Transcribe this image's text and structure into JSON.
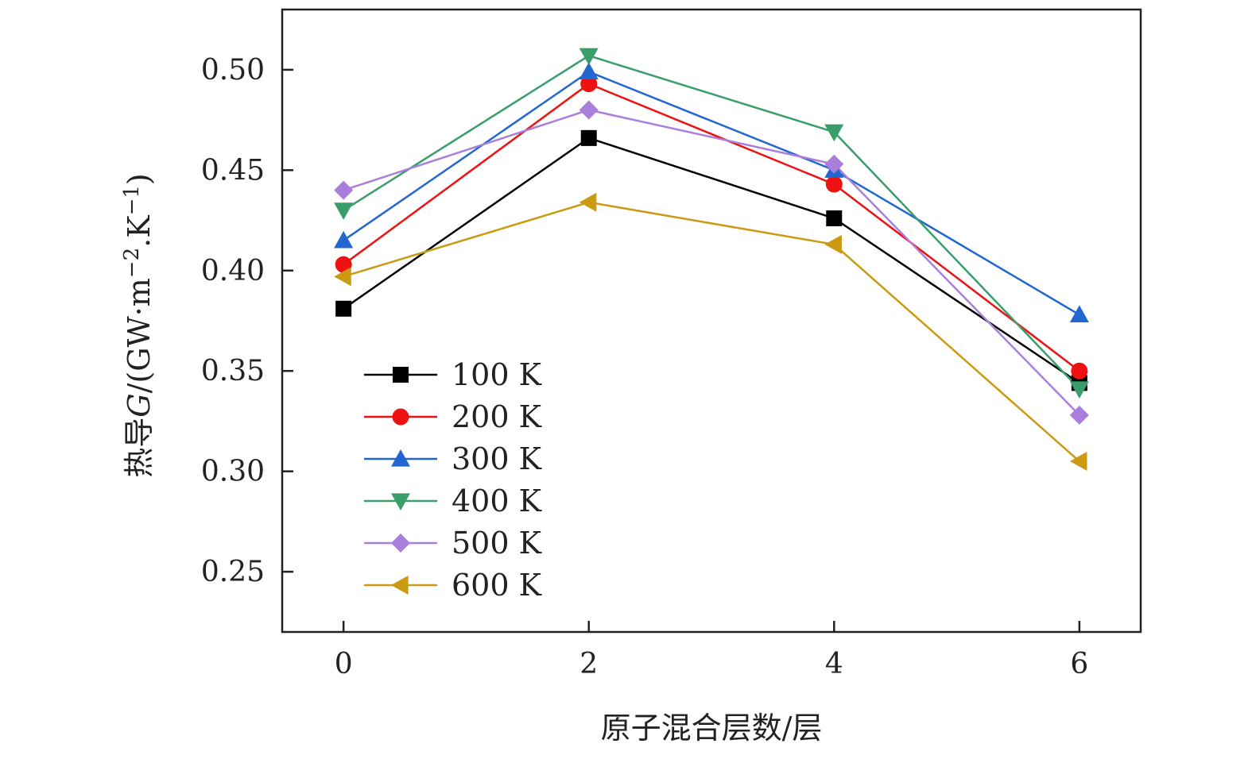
{
  "chart_data": {
    "type": "line",
    "title": "",
    "xlabel": "原子混合层数/层",
    "ylabel_prefix": "热导",
    "ylabel_var": "G",
    "ylabel_units": "/(GW·m",
    "ylabel_exp1": "−2",
    "ylabel_mid": ".K",
    "ylabel_exp2": "−1",
    "ylabel_close": ")",
    "x": [
      0,
      2,
      4,
      6
    ],
    "xlim": [
      -0.5,
      6.5
    ],
    "ylim": [
      0.22,
      0.53
    ],
    "xticks": [
      "0",
      "2",
      "4",
      "6"
    ],
    "yticks": [
      "0.25",
      "0.30",
      "0.35",
      "0.40",
      "0.45",
      "0.50"
    ],
    "legend_position": "lower-left",
    "series": [
      {
        "name": "100 K",
        "color": "#000000",
        "marker": "square",
        "values": [
          0.381,
          0.466,
          0.426,
          0.344
        ]
      },
      {
        "name": "200 K",
        "color": "#ee1111",
        "marker": "circle",
        "values": [
          0.403,
          0.493,
          0.443,
          0.35
        ]
      },
      {
        "name": "300 K",
        "color": "#2166d1",
        "marker": "triangle-up",
        "values": [
          0.415,
          0.499,
          0.45,
          0.378
        ]
      },
      {
        "name": "400 K",
        "color": "#3a9e6a",
        "marker": "triangle-down",
        "values": [
          0.43,
          0.507,
          0.469,
          0.341
        ]
      },
      {
        "name": "500 K",
        "color": "#a97fdb",
        "marker": "diamond",
        "values": [
          0.44,
          0.48,
          0.453,
          0.328
        ]
      },
      {
        "name": "600 K",
        "color": "#c99a12",
        "marker": "triangle-left",
        "values": [
          0.397,
          0.434,
          0.413,
          0.305
        ]
      }
    ]
  }
}
